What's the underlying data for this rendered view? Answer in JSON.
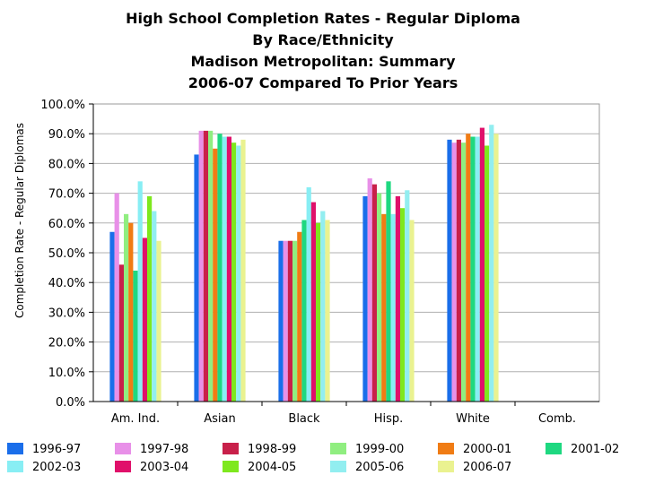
{
  "chart_data": {
    "type": "bar",
    "title_lines": [
      "High School Completion Rates - Regular Diploma",
      "By Race/Ethnicity",
      "Madison Metropolitan:  Summary",
      "2006-07 Compared To Prior Years"
    ],
    "xlabel": "",
    "ylabel": "Completion Rate - Regular Diplomas",
    "ylim": [
      0,
      100
    ],
    "y_ticks": [
      "0.0%",
      "10.0%",
      "20.0%",
      "30.0%",
      "40.0%",
      "50.0%",
      "60.0%",
      "70.0%",
      "80.0%",
      "90.0%",
      "100.0%"
    ],
    "grid": true,
    "legend_position": "bottom",
    "categories": [
      "Am. Ind.",
      "Asian",
      "Black",
      "Hisp.",
      "White",
      "Comb."
    ],
    "series": [
      {
        "name": "1996-97",
        "color": "#1a6eea",
        "values": [
          57,
          83,
          54,
          69,
          88,
          null
        ]
      },
      {
        "name": "1997-98",
        "color": "#e890e8",
        "values": [
          70,
          91,
          54,
          75,
          87,
          null
        ]
      },
      {
        "name": "1998-99",
        "color": "#c8204a",
        "values": [
          46,
          91,
          54,
          73,
          88,
          null
        ]
      },
      {
        "name": "1999-00",
        "color": "#90ee80",
        "values": [
          63,
          91,
          54,
          70,
          87,
          null
        ]
      },
      {
        "name": "2000-01",
        "color": "#f07c14",
        "values": [
          60,
          85,
          57,
          63,
          90,
          null
        ]
      },
      {
        "name": "2001-02",
        "color": "#1ed880",
        "values": [
          44,
          90,
          61,
          74,
          89,
          null
        ]
      },
      {
        "name": "2002-03",
        "color": "#88eef4",
        "values": [
          74,
          89,
          72,
          63,
          89,
          null
        ]
      },
      {
        "name": "2003-04",
        "color": "#e0106a",
        "values": [
          55,
          89,
          67,
          69,
          92,
          null
        ]
      },
      {
        "name": "2004-05",
        "color": "#7ee81e",
        "values": [
          69,
          87,
          60,
          65,
          86,
          null
        ]
      },
      {
        "name": "2005-06",
        "color": "#92eef0",
        "values": [
          64,
          86,
          64,
          71,
          93,
          null
        ]
      },
      {
        "name": "2006-07",
        "color": "#eaf290",
        "values": [
          54,
          88,
          61,
          61,
          90,
          null
        ]
      }
    ]
  }
}
